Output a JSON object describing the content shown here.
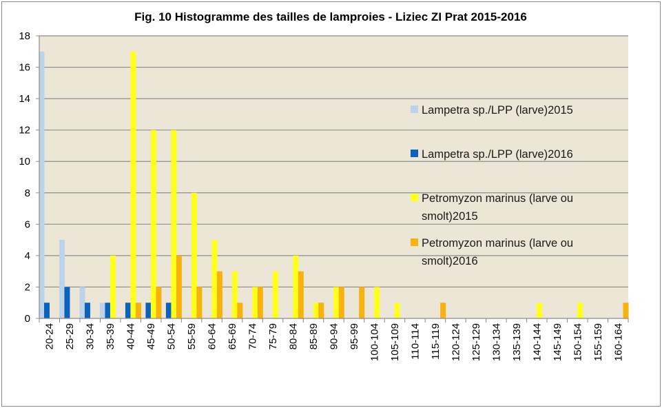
{
  "chart_data": {
    "type": "bar",
    "title": "Fig. 10 Histogramme des tailles de lamproies - Liziec ZI Prat 2015-2016",
    "xlabel": "",
    "ylabel": "",
    "ylim": [
      0,
      18
    ],
    "yticks": [
      0,
      2,
      4,
      6,
      8,
      10,
      12,
      14,
      16,
      18
    ],
    "grid": true,
    "legend_position": "right",
    "plot_background": "#ebe6d6",
    "categories": [
      "20-24",
      "25-29",
      "30-34",
      "35-39",
      "40-44",
      "45-49",
      "50-54",
      "55-59",
      "60-64",
      "65-69",
      "70-74",
      "75-79",
      "80-84",
      "85-89",
      "90-94",
      "95-99",
      "100-104",
      "105-109",
      "110-114",
      "115-119",
      "120-124",
      "125-129",
      "130-134",
      "135-139",
      "140-144",
      "145-149",
      "150-154",
      "155-159",
      "160-164"
    ],
    "series": [
      {
        "name": "Lampetra sp./LPP (larve)2015",
        "color": "#bcd3ec",
        "values": [
          17,
          5,
          2,
          1,
          0,
          0,
          0,
          0,
          0,
          0,
          0,
          0,
          0,
          0,
          0,
          0,
          0,
          0,
          0,
          0,
          0,
          0,
          0,
          0,
          0,
          0,
          0,
          0,
          0
        ]
      },
      {
        "name": "Lampetra sp./LPP (larve)2016",
        "color": "#0a62bd",
        "values": [
          1,
          2,
          1,
          1,
          1,
          1,
          1,
          0,
          0,
          0,
          0,
          0,
          0,
          0,
          0,
          0,
          0,
          0,
          0,
          0,
          0,
          0,
          0,
          0,
          0,
          0,
          0,
          0,
          0
        ]
      },
      {
        "name": "Petromyzon marinus (larve ou smolt)2015",
        "color": "#ffff1a",
        "values": [
          0,
          0,
          0,
          4,
          17,
          12,
          12,
          8,
          5,
          3,
          2,
          3,
          4,
          1,
          2,
          0,
          2,
          1,
          0,
          0,
          0,
          0,
          0,
          0,
          1,
          0,
          1,
          0,
          0
        ]
      },
      {
        "name": "Petromyzon marinus (larve ou smolt)2016",
        "color": "#f7b20c",
        "values": [
          0,
          0,
          0,
          0,
          1,
          2,
          4,
          2,
          3,
          1,
          2,
          0,
          3,
          1,
          2,
          2,
          0,
          0,
          0,
          1,
          0,
          0,
          0,
          0,
          0,
          0,
          0,
          0,
          1
        ]
      }
    ],
    "legend_lines": [
      [
        "Lampetra sp./LPP (larve)2015"
      ],
      [
        "Lampetra sp./LPP (larve)2016"
      ],
      [
        "Petromyzon marinus (larve ou",
        "smolt)2015"
      ],
      [
        "Petromyzon marinus (larve ou",
        "smolt)2016"
      ]
    ]
  }
}
